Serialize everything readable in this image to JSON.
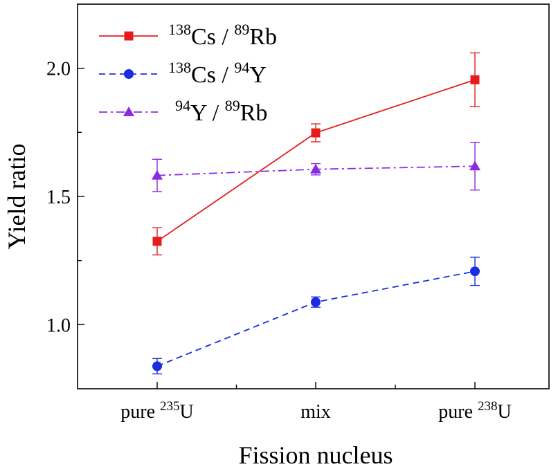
{
  "chart_data": {
    "type": "line",
    "title": "",
    "xlabel": "Fission nucleus",
    "ylabel": "Yield ratio",
    "categories": [
      {
        "prefix": "pure ",
        "sup": "235",
        "base": "U"
      },
      {
        "prefix": "mix",
        "sup": "",
        "base": ""
      },
      {
        "prefix": "pure ",
        "sup": "238",
        "base": "U"
      }
    ],
    "ylim": [
      0.75,
      2.25
    ],
    "yticks": [
      1.0,
      1.5,
      2.0
    ],
    "yticks_minor": [
      1.25,
      1.75
    ],
    "legend_position": "top-left",
    "series": [
      {
        "name": "138Cs / 89Rb",
        "label_parts": [
          {
            "sup": "138"
          },
          {
            "text": "Cs / "
          },
          {
            "sup": "89"
          },
          {
            "text": "Rb"
          }
        ],
        "color": "#e51c1c",
        "marker": "square",
        "dash": "solid",
        "values": [
          1.325,
          1.748,
          1.955
        ],
        "errors": [
          0.053,
          0.035,
          0.105
        ]
      },
      {
        "name": "138Cs / 94Y",
        "label_parts": [
          {
            "sup": "138"
          },
          {
            "text": "Cs / "
          },
          {
            "sup": "94"
          },
          {
            "text": "Y"
          }
        ],
        "color": "#1a2de0",
        "marker": "circle",
        "dash": "dashed",
        "values": [
          0.838,
          1.088,
          1.208
        ],
        "errors": [
          0.03,
          0.02,
          0.055
        ]
      },
      {
        "name": "94Y / 89Rb",
        "label_parts": [
          {
            "sup": "94"
          },
          {
            "text": "Y / "
          },
          {
            "sup": "89"
          },
          {
            "text": "Rb"
          }
        ],
        "color": "#8a2be2",
        "marker": "triangle",
        "dash": "dashdot",
        "values": [
          1.582,
          1.606,
          1.618
        ],
        "errors": [
          0.063,
          0.022,
          0.093
        ]
      }
    ]
  }
}
